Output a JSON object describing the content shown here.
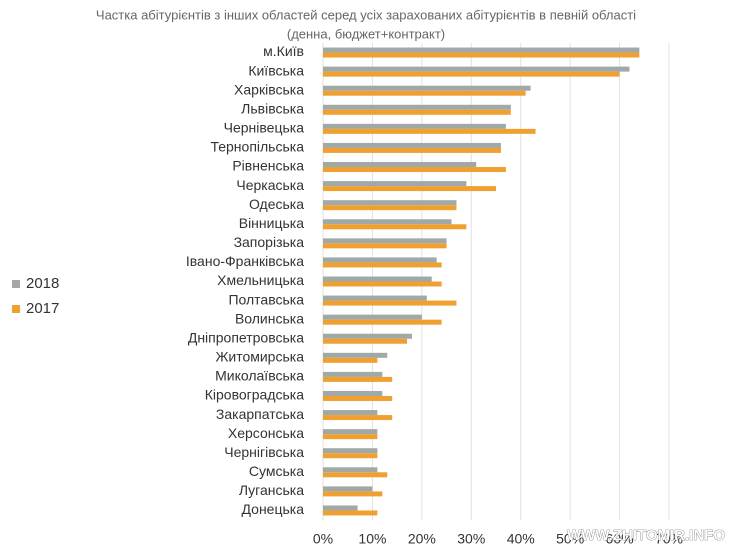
{
  "chart_data": {
    "type": "bar",
    "orientation": "horizontal",
    "title": "Частка абітурієнтів з інших областей серед усіх зарахованих абітурієнтів в певній області",
    "subtitle": "(денна, бюджет+контракт)",
    "categories": [
      "м.Київ",
      "Київська",
      "Харківська",
      "Львівська",
      "Чернівецька",
      "Тернопільська",
      "Рівненська",
      "Черкаська",
      "Одеська",
      "Вінницька",
      "Запорізька",
      "Івано-Франківська",
      "Хмельницька",
      "Полтавська",
      "Волинська",
      "Дніпропетровська",
      "Житомирська",
      "Миколаївська",
      "Кіровоградська",
      "Закарпатська",
      "Херсонська",
      "Чернігівська",
      "Сумська",
      "Луганська",
      "Донецька"
    ],
    "series": [
      {
        "name": "2018",
        "color": "#a0a8a8",
        "values": [
          64,
          62,
          42,
          38,
          37,
          36,
          31,
          29,
          27,
          26,
          25,
          23,
          22,
          21,
          20,
          18,
          13,
          12,
          12,
          11,
          11,
          11,
          11,
          10,
          7
        ]
      },
      {
        "name": "2017",
        "color": "#f0a030",
        "values": [
          64,
          60,
          41,
          38,
          43,
          36,
          37,
          35,
          27,
          29,
          25,
          24,
          24,
          27,
          24,
          17,
          11,
          14,
          14,
          14,
          11,
          11,
          13,
          12,
          11
        ]
      }
    ],
    "xlim": [
      0,
      70
    ],
    "xticks": [
      {
        "value": 0,
        "label": "0%"
      },
      {
        "value": 10,
        "label": "10%"
      },
      {
        "value": 20,
        "label": "20%"
      },
      {
        "value": 30,
        "label": "30%"
      },
      {
        "value": 40,
        "label": "40%"
      },
      {
        "value": 50,
        "label": "50%"
      },
      {
        "value": 60,
        "label": "60%"
      },
      {
        "value": 70,
        "label": "70%"
      }
    ],
    "grid": true,
    "legend": "left",
    "watermark": "WWW.ZHITOMIR.INFO"
  }
}
